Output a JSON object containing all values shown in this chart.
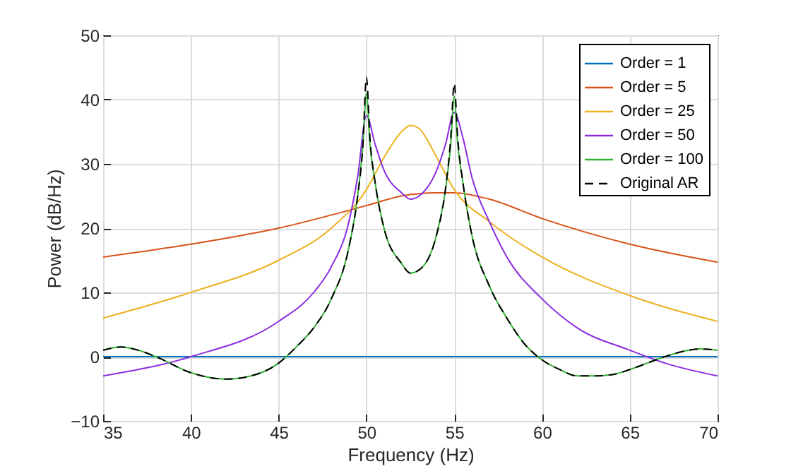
{
  "chart_data": {
    "type": "line",
    "xlabel": "Frequency (Hz)",
    "ylabel": "Power (dB/Hz)",
    "xlim": [
      35,
      70
    ],
    "ylim": [
      -10,
      50
    ],
    "xticks": [
      35,
      40,
      45,
      50,
      55,
      60,
      65,
      70
    ],
    "yticks": [
      -10,
      0,
      10,
      20,
      30,
      40,
      50
    ],
    "grid": true,
    "legend": "top right",
    "line_style": "solid",
    "series": [
      {
        "name": "Order = 1",
        "color": "#0072bd",
        "x": [
          35,
          70
        ],
        "values": [
          0,
          0
        ]
      },
      {
        "name": "Order = 5",
        "color": "#d95319",
        "x": [
          35,
          40,
          45,
          50,
          52,
          54,
          55,
          57,
          60,
          65,
          70
        ],
        "values": [
          15.5,
          17.5,
          20,
          23.5,
          25,
          25.5,
          25.5,
          24.5,
          21.5,
          17.5,
          14.7
        ]
      },
      {
        "name": "Order = 25",
        "color": "#edb120",
        "x": [
          35,
          40,
          45,
          48,
          50,
          51,
          52,
          52.5,
          53,
          54,
          55,
          57,
          60,
          65,
          70
        ],
        "values": [
          6,
          10,
          15,
          20,
          26,
          31,
          35,
          36,
          35.5,
          31,
          26,
          21,
          15.5,
          9.5,
          5.5
        ]
      },
      {
        "name": "Order = 50",
        "color": "#8b2be2",
        "x": [
          35,
          40,
          45,
          47,
          48,
          49,
          49.5,
          50,
          50.5,
          51,
          52,
          52.5,
          53,
          54,
          54.5,
          55,
          55.5,
          56,
          57,
          58,
          60,
          62,
          65,
          67,
          70
        ],
        "values": [
          -3,
          0,
          5.5,
          10,
          14,
          21,
          28,
          37.5,
          33,
          29,
          25.5,
          24.5,
          25,
          29,
          33,
          38,
          34,
          28,
          21,
          15.5,
          9,
          4.5,
          1,
          -1,
          -3
        ]
      },
      {
        "name": "Order = 100",
        "color": "#33b333",
        "x": [
          35,
          36,
          37,
          38,
          40,
          42,
          44,
          45,
          46,
          47,
          48,
          49,
          49.5,
          49.8,
          50,
          50.2,
          50.5,
          51,
          52,
          52.5,
          53,
          54,
          54.5,
          54.8,
          55,
          55.2,
          55.5,
          56,
          57,
          58,
          59,
          60,
          61,
          62,
          63,
          64,
          65,
          66,
          67,
          68,
          69,
          70
        ],
        "values": [
          1,
          1.5,
          1,
          0,
          -2.5,
          -3.5,
          -2.5,
          -1,
          1.5,
          4.5,
          9,
          17,
          25,
          33,
          41,
          33,
          27,
          20,
          14.5,
          13,
          13.5,
          19,
          26,
          33,
          40.5,
          33,
          27,
          19,
          11,
          6,
          2,
          -0.5,
          -2,
          -3,
          -3,
          -2.8,
          -2,
          -1,
          0,
          0.8,
          1.2,
          1
        ]
      },
      {
        "name": "Original AR",
        "color": "#000000",
        "line_style": "dashed",
        "x": [
          35,
          36,
          37,
          38,
          40,
          42,
          44,
          45,
          46,
          47,
          48,
          49,
          49.5,
          49.8,
          50,
          50.2,
          50.5,
          51,
          52,
          52.5,
          53,
          54,
          54.5,
          54.8,
          55,
          55.2,
          55.5,
          56,
          57,
          58,
          59,
          60,
          61,
          62,
          63,
          64,
          65,
          66,
          67,
          68,
          69,
          70
        ],
        "values": [
          1,
          1.5,
          1,
          0,
          -2.5,
          -3.5,
          -2.5,
          -1,
          1.5,
          4.5,
          9,
          17,
          25,
          33,
          43.5,
          34,
          27,
          20,
          14.5,
          13,
          13.5,
          19,
          26,
          34,
          42.5,
          34,
          27,
          19,
          11,
          6,
          2,
          -0.5,
          -2,
          -3,
          -3,
          -2.8,
          -2,
          -1,
          0,
          0.8,
          1.2,
          1
        ]
      }
    ]
  }
}
